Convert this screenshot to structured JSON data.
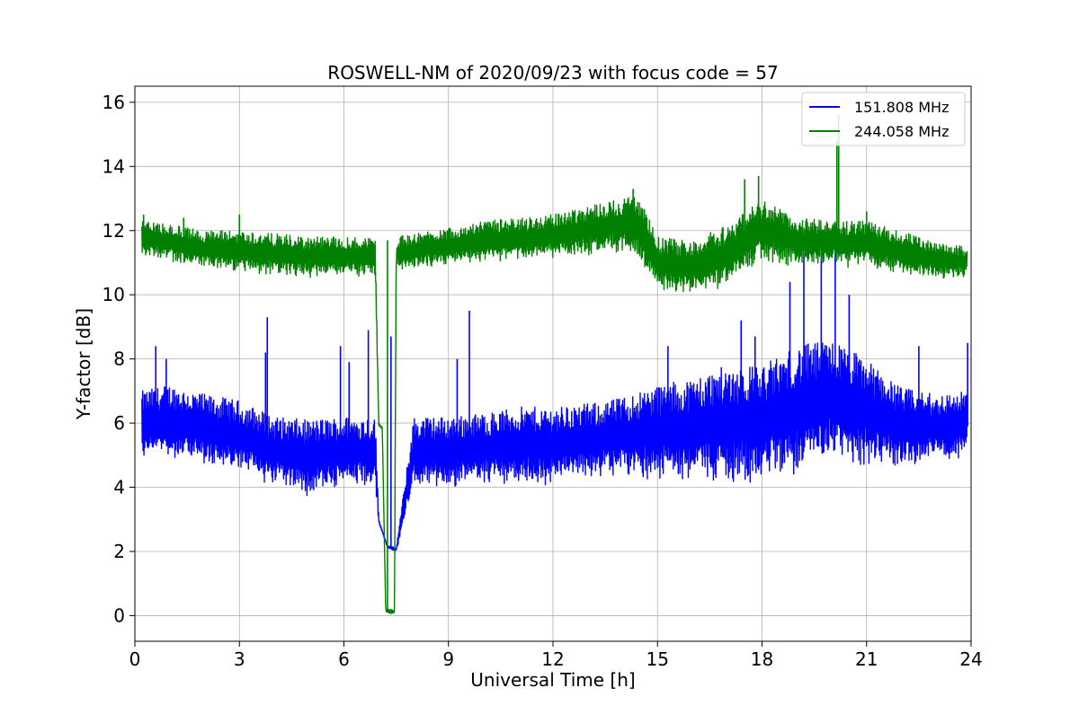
{
  "chart_data": {
    "type": "line",
    "title": "ROSWELL-NM of 2020/09/23 with focus code = 57",
    "xlabel": "Universal Time [h]",
    "ylabel": "Y-factor [dB]",
    "xlim": [
      0,
      24
    ],
    "ylim": [
      -0.8,
      16.5
    ],
    "xticks": [
      0,
      3,
      6,
      9,
      12,
      15,
      18,
      21,
      24
    ],
    "xtick_labels": [
      "0",
      "3",
      "6",
      "9",
      "12",
      "15",
      "18",
      "21",
      "24"
    ],
    "yticks": [
      0,
      2,
      4,
      6,
      8,
      10,
      12,
      14,
      16
    ],
    "ytick_labels": [
      "0",
      "2",
      "4",
      "6",
      "8",
      "10",
      "12",
      "14",
      "16"
    ],
    "grid": true,
    "legend_position": "top-right",
    "series": [
      {
        "name": "151.808 MHz",
        "color": "#0000ff",
        "band_note": "dense noisy trace",
        "x": [
          0.2,
          1,
          2,
          3,
          4,
          5,
          6,
          6.9,
          7.0,
          7.25,
          7.5,
          8,
          9,
          10,
          11,
          12,
          13,
          14,
          15,
          16,
          17,
          18,
          19,
          20,
          21,
          22,
          23,
          23.9
        ],
        "low": [
          4.8,
          4.8,
          4.6,
          4.4,
          4.0,
          3.7,
          3.9,
          3.9,
          2.9,
          2.1,
          2.0,
          3.9,
          3.9,
          4.0,
          4.0,
          4.0,
          4.2,
          4.3,
          4.1,
          4.1,
          4.0,
          4.0,
          4.4,
          4.8,
          4.6,
          4.6,
          4.7,
          4.8
        ],
        "high": [
          7.0,
          7.2,
          6.9,
          6.7,
          6.2,
          6.1,
          6.2,
          6.2,
          3.0,
          2.2,
          2.1,
          6.2,
          6.2,
          6.3,
          6.5,
          6.5,
          6.6,
          6.8,
          7.2,
          7.4,
          7.8,
          7.8,
          8.4,
          8.6,
          8.0,
          7.1,
          6.9,
          7.0
        ],
        "spikes": [
          {
            "x": 0.6,
            "y": 8.4
          },
          {
            "x": 0.9,
            "y": 8.0
          },
          {
            "x": 3.8,
            "y": 9.3
          },
          {
            "x": 3.75,
            "y": 8.2
          },
          {
            "x": 5.9,
            "y": 8.4
          },
          {
            "x": 6.15,
            "y": 7.9
          },
          {
            "x": 6.7,
            "y": 8.9
          },
          {
            "x": 7.35,
            "y": 8.7
          },
          {
            "x": 9.6,
            "y": 9.5
          },
          {
            "x": 9.25,
            "y": 8.0
          },
          {
            "x": 15.3,
            "y": 8.4
          },
          {
            "x": 17.4,
            "y": 9.2
          },
          {
            "x": 17.8,
            "y": 8.7
          },
          {
            "x": 18.8,
            "y": 10.4
          },
          {
            "x": 19.2,
            "y": 11.3
          },
          {
            "x": 19.7,
            "y": 11.3
          },
          {
            "x": 20.1,
            "y": 11.6
          },
          {
            "x": 20.5,
            "y": 10.0
          },
          {
            "x": 22.5,
            "y": 8.4
          },
          {
            "x": 23.9,
            "y": 8.5
          }
        ]
      },
      {
        "name": "244.058 MHz",
        "color": "#008000",
        "band_note": "dense noisy trace",
        "x": [
          0.2,
          1,
          2,
          3,
          4,
          5,
          6,
          6.9,
          7.0,
          7.1,
          7.2,
          7.3,
          7.45,
          7.5,
          8,
          9,
          10,
          11,
          12,
          13,
          14,
          14.4,
          15,
          16,
          17,
          18,
          19,
          20,
          21,
          22,
          23,
          23.9
        ],
        "low": [
          11.2,
          11.0,
          10.8,
          10.7,
          10.6,
          10.5,
          10.6,
          10.5,
          5.9,
          5.8,
          0.1,
          0.05,
          0.05,
          10.7,
          10.8,
          10.9,
          11.0,
          11.0,
          11.1,
          11.2,
          11.3,
          11.0,
          10.1,
          10.0,
          10.2,
          11.0,
          10.8,
          10.9,
          10.8,
          10.6,
          10.5,
          10.5
        ],
        "high": [
          12.3,
          12.2,
          12.0,
          12.0,
          11.9,
          11.8,
          11.8,
          11.8,
          6.0,
          5.9,
          0.2,
          0.2,
          0.2,
          11.8,
          11.9,
          12.1,
          12.3,
          12.4,
          12.5,
          12.8,
          13.0,
          13.2,
          11.8,
          11.7,
          12.2,
          13.0,
          12.4,
          12.3,
          12.3,
          12.0,
          11.6,
          11.5
        ],
        "spikes": [
          {
            "x": 0.25,
            "y": 12.5
          },
          {
            "x": 1.4,
            "y": 12.4
          },
          {
            "x": 3.0,
            "y": 12.5
          },
          {
            "x": 7.25,
            "y": 11.7
          },
          {
            "x": 14.3,
            "y": 13.3
          },
          {
            "x": 17.5,
            "y": 13.6
          },
          {
            "x": 17.9,
            "y": 13.7
          },
          {
            "x": 20.2,
            "y": 15.6
          },
          {
            "x": 20.15,
            "y": 14.8
          },
          {
            "x": 21.0,
            "y": 12.6
          }
        ]
      }
    ]
  }
}
